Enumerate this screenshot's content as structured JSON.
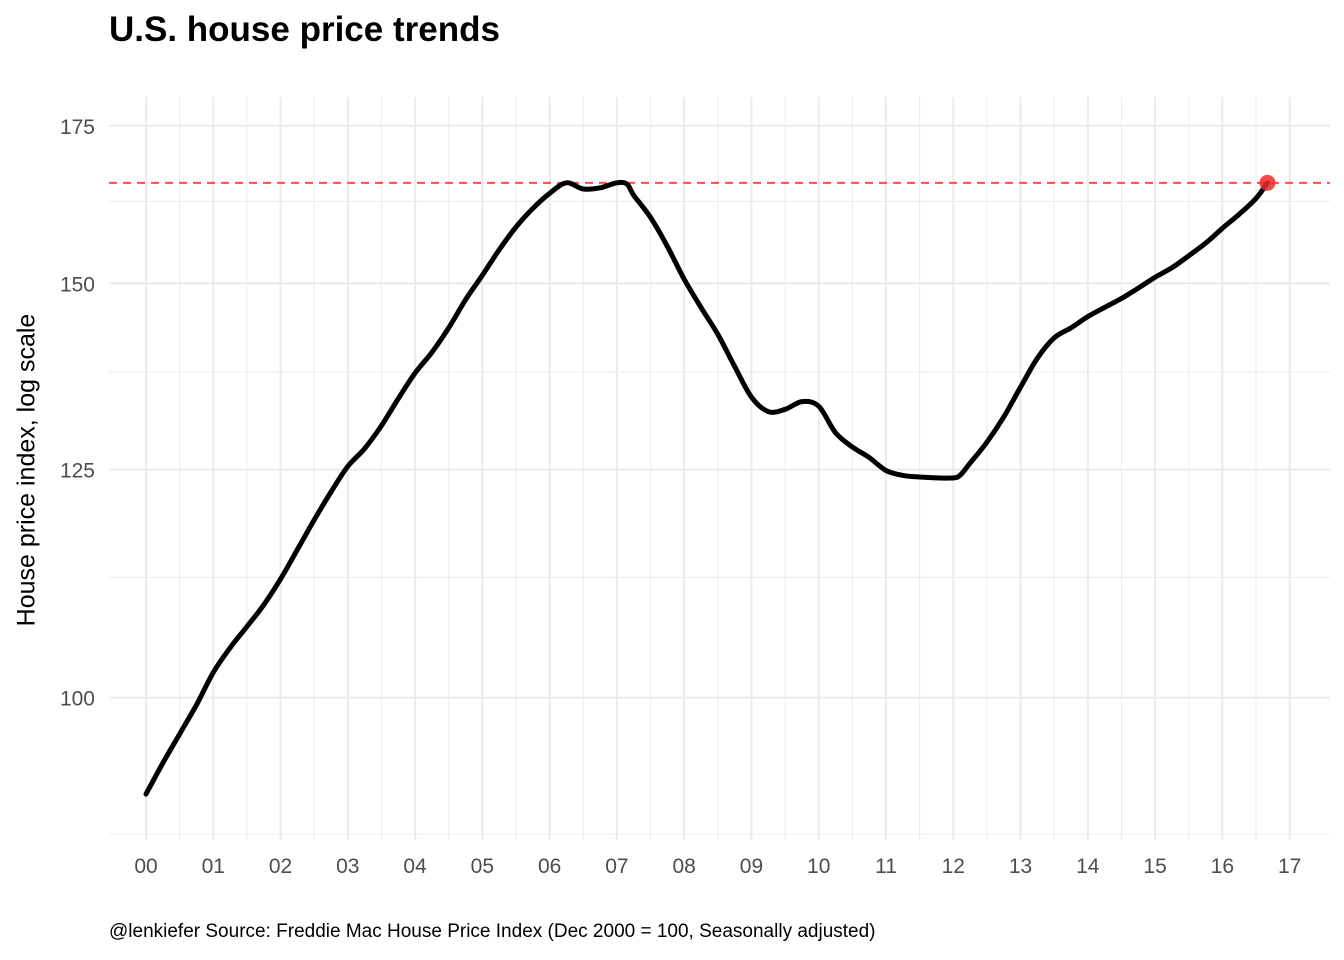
{
  "chart_data": {
    "type": "line",
    "title": "U.S. house price trends",
    "ylabel": "House price index, log scale",
    "xlabel": "",
    "caption": "@lenkiefer Source: Freddie Mac House Price Index (Dec 2000 = 100, Seasonally adjusted)",
    "y_scale": "log",
    "grid": true,
    "xlim": [
      1999.45,
      2017.6
    ],
    "ylim": [
      87,
      180
    ],
    "x_ticks": [
      2000,
      2001,
      2002,
      2003,
      2004,
      2005,
      2006,
      2007,
      2008,
      2009,
      2010,
      2011,
      2012,
      2013,
      2014,
      2015,
      2016,
      2017
    ],
    "x_tick_labels": [
      "00",
      "01",
      "02",
      "03",
      "04",
      "05",
      "06",
      "07",
      "08",
      "09",
      "10",
      "11",
      "12",
      "13",
      "14",
      "15",
      "16",
      "17"
    ],
    "y_ticks": [
      100,
      125,
      150,
      175
    ],
    "y_tick_labels": [
      "100",
      "125",
      "150",
      "175"
    ],
    "colors": {
      "line": "#000000",
      "reference": "#ff4d4d",
      "point": "#ee2a2a",
      "grid": "#ebebeb"
    },
    "reference_line": {
      "y": 165.5
    },
    "highlight_point": {
      "x": 2016.67,
      "y": 165.5
    },
    "series": [
      {
        "x": [
          2000.0,
          2000.25,
          2000.5,
          2000.75,
          2001.0,
          2001.25,
          2001.5,
          2001.75,
          2002.0,
          2002.25,
          2002.5,
          2002.75,
          2003.0,
          2003.25,
          2003.5,
          2003.75,
          2004.0,
          2004.25,
          2004.5,
          2004.75,
          2005.0,
          2005.25,
          2005.5,
          2005.75,
          2006.0,
          2006.25,
          2006.5,
          2006.75,
          2007.0,
          2007.15,
          2007.25,
          2007.5,
          2007.75,
          2008.0,
          2008.25,
          2008.5,
          2008.75,
          2009.0,
          2009.25,
          2009.5,
          2009.75,
          2010.0,
          2010.25,
          2010.5,
          2010.75,
          2011.0,
          2011.25,
          2011.5,
          2011.75,
          2012.0,
          2012.1,
          2012.25,
          2012.5,
          2012.75,
          2013.0,
          2013.25,
          2013.5,
          2013.75,
          2014.0,
          2014.25,
          2014.5,
          2014.75,
          2015.0,
          2015.25,
          2015.5,
          2015.75,
          2016.0,
          2016.25,
          2016.5,
          2016.67
        ],
        "y": [
          91.0,
          93.8,
          96.5,
          99.3,
          102.5,
          105.0,
          107.2,
          109.5,
          112.3,
          115.6,
          119.0,
          122.3,
          125.4,
          127.6,
          130.5,
          134.0,
          137.4,
          140.2,
          143.6,
          147.6,
          151.2,
          155.0,
          158.5,
          161.4,
          163.8,
          165.5,
          164.5,
          164.7,
          165.5,
          165.3,
          163.5,
          160.0,
          155.5,
          150.6,
          146.5,
          142.7,
          138.3,
          134.2,
          132.3,
          132.6,
          133.6,
          133.0,
          129.6,
          127.8,
          126.5,
          124.9,
          124.3,
          124.1,
          124.0,
          124.0,
          124.3,
          125.8,
          128.4,
          131.6,
          135.5,
          139.4,
          142.2,
          143.6,
          145.2,
          146.5,
          147.8,
          149.3,
          150.9,
          152.3,
          154.1,
          156.0,
          158.3,
          160.5,
          163.0,
          165.5
        ]
      }
    ]
  }
}
